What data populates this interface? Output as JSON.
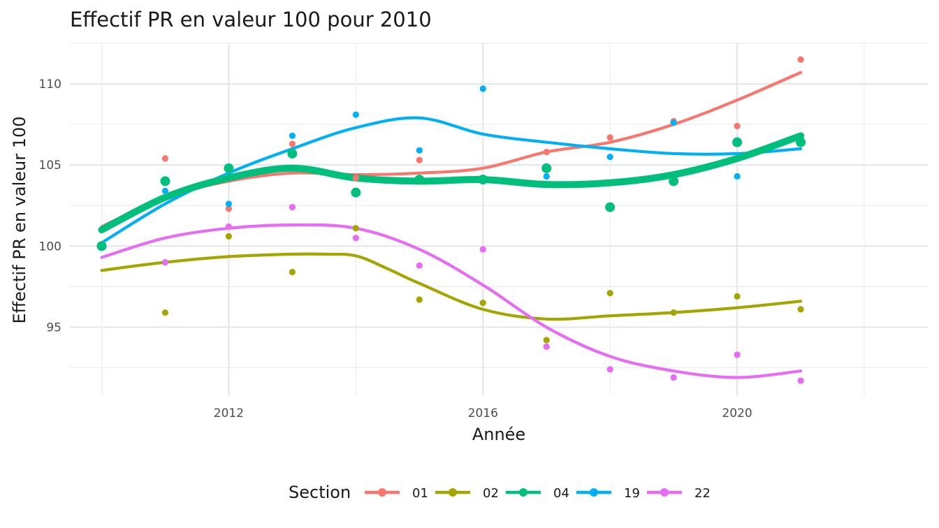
{
  "chart_data": {
    "type": "scatter",
    "title": "Effectif PR en valeur 100 pour 2010",
    "xlabel": "Année",
    "ylabel": "Effectif PR en valeur 100",
    "x_ticks": [
      2012,
      2016,
      2020
    ],
    "y_ticks": [
      95,
      100,
      105,
      110
    ],
    "xlim": [
      2009.5,
      2023
    ],
    "ylim": [
      90.8,
      112.5
    ],
    "grid": true,
    "legend": {
      "title": "Section",
      "position": "bottom"
    },
    "x": [
      2010,
      2011,
      2012,
      2013,
      2014,
      2015,
      2016,
      2017,
      2018,
      2019,
      2020,
      2021
    ],
    "series": [
      {
        "name": "01",
        "color": "#F8766D",
        "highlighted": false,
        "points": [
          100,
          105.4,
          102.3,
          106.3,
          104.2,
          105.3,
          104.1,
          105.8,
          106.7,
          107.7,
          107.4,
          111.5
        ],
        "trend": [
          [
            2010,
            101.2
          ],
          [
            2011,
            103.0
          ],
          [
            2012,
            104.0
          ],
          [
            2013,
            104.5
          ],
          [
            2014,
            104.4
          ],
          [
            2015,
            104.5
          ],
          [
            2016,
            104.8
          ],
          [
            2017,
            105.8
          ],
          [
            2018,
            106.4
          ],
          [
            2019,
            107.5
          ],
          [
            2020,
            109.0
          ],
          [
            2021,
            110.7
          ]
        ]
      },
      {
        "name": "02",
        "color": "#A3A500",
        "highlighted": false,
        "points": [
          100,
          95.9,
          100.6,
          98.4,
          101.1,
          96.7,
          96.5,
          94.2,
          97.1,
          95.9,
          96.9,
          96.1
        ],
        "trend": [
          [
            2010,
            98.5
          ],
          [
            2011,
            99.0
          ],
          [
            2012,
            99.35
          ],
          [
            2013,
            99.5
          ],
          [
            2013.5,
            99.5
          ],
          [
            2014,
            99.4
          ],
          [
            2014.5,
            98.6
          ],
          [
            2015,
            97.7
          ],
          [
            2016,
            96.1
          ],
          [
            2017,
            95.5
          ],
          [
            2018,
            95.7
          ],
          [
            2019,
            95.9
          ],
          [
            2020,
            96.2
          ],
          [
            2021,
            96.6
          ]
        ]
      },
      {
        "name": "04",
        "color": "#00BF7D",
        "highlighted": true,
        "points": [
          100,
          104.0,
          104.8,
          105.7,
          103.3,
          104.1,
          104.1,
          104.8,
          102.4,
          104.0,
          106.4,
          106.4
        ],
        "trend": [
          [
            2010,
            101.0
          ],
          [
            2011,
            103.0
          ],
          [
            2012,
            104.2
          ],
          [
            2013,
            104.8
          ],
          [
            2014,
            104.2
          ],
          [
            2015,
            104.0
          ],
          [
            2016,
            104.1
          ],
          [
            2017,
            103.8
          ],
          [
            2018,
            103.9
          ],
          [
            2019,
            104.4
          ],
          [
            2020,
            105.4
          ],
          [
            2021,
            106.8
          ]
        ]
      },
      {
        "name": "19",
        "color": "#00B0F6",
        "highlighted": false,
        "points": [
          100,
          103.4,
          102.6,
          106.8,
          108.1,
          105.9,
          109.7,
          104.3,
          105.5,
          107.6,
          104.3,
          106.4
        ],
        "trend": [
          [
            2010,
            100.2
          ],
          [
            2011,
            102.6
          ],
          [
            2012,
            104.5
          ],
          [
            2013,
            106.0
          ],
          [
            2014,
            107.3
          ],
          [
            2015,
            107.9
          ],
          [
            2016,
            106.9
          ],
          [
            2017,
            106.4
          ],
          [
            2018,
            106.0
          ],
          [
            2019,
            105.7
          ],
          [
            2020,
            105.7
          ],
          [
            2021,
            106.0
          ]
        ]
      },
      {
        "name": "22",
        "color": "#E76BF3",
        "highlighted": false,
        "points": [
          100,
          99.0,
          101.2,
          102.4,
          100.5,
          98.8,
          99.8,
          93.8,
          92.4,
          91.9,
          93.3,
          91.7
        ],
        "trend": [
          [
            2010,
            99.3
          ],
          [
            2011,
            100.5
          ],
          [
            2012,
            101.1
          ],
          [
            2013,
            101.3
          ],
          [
            2014,
            101.1
          ],
          [
            2015,
            99.8
          ],
          [
            2016,
            97.6
          ],
          [
            2017,
            95.0
          ],
          [
            2018,
            93.2
          ],
          [
            2019,
            92.3
          ],
          [
            2020,
            91.9
          ],
          [
            2021,
            92.3
          ]
        ]
      }
    ]
  }
}
